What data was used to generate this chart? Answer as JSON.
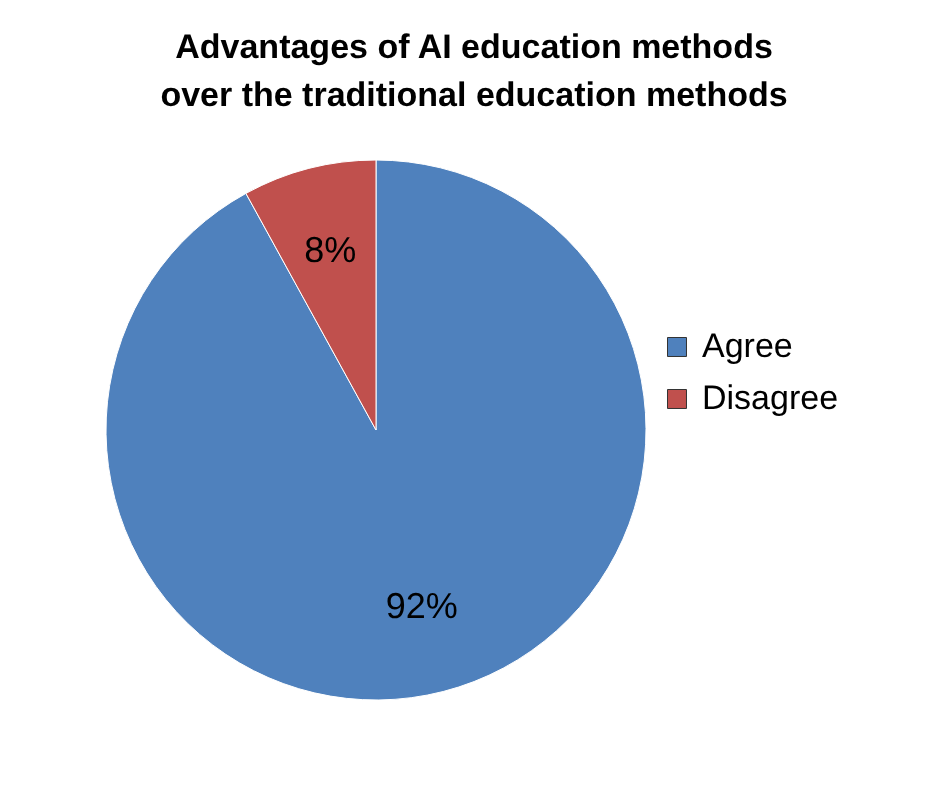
{
  "chart_data": {
    "type": "pie",
    "title": "Advantages of AI education methods over the traditional education methods",
    "categories": [
      "Agree",
      "Disagree"
    ],
    "values": [
      92,
      8
    ],
    "colors": [
      "#4f81bd",
      "#c0504d"
    ],
    "value_labels": [
      "92%",
      "8%"
    ],
    "legend": "right"
  }
}
